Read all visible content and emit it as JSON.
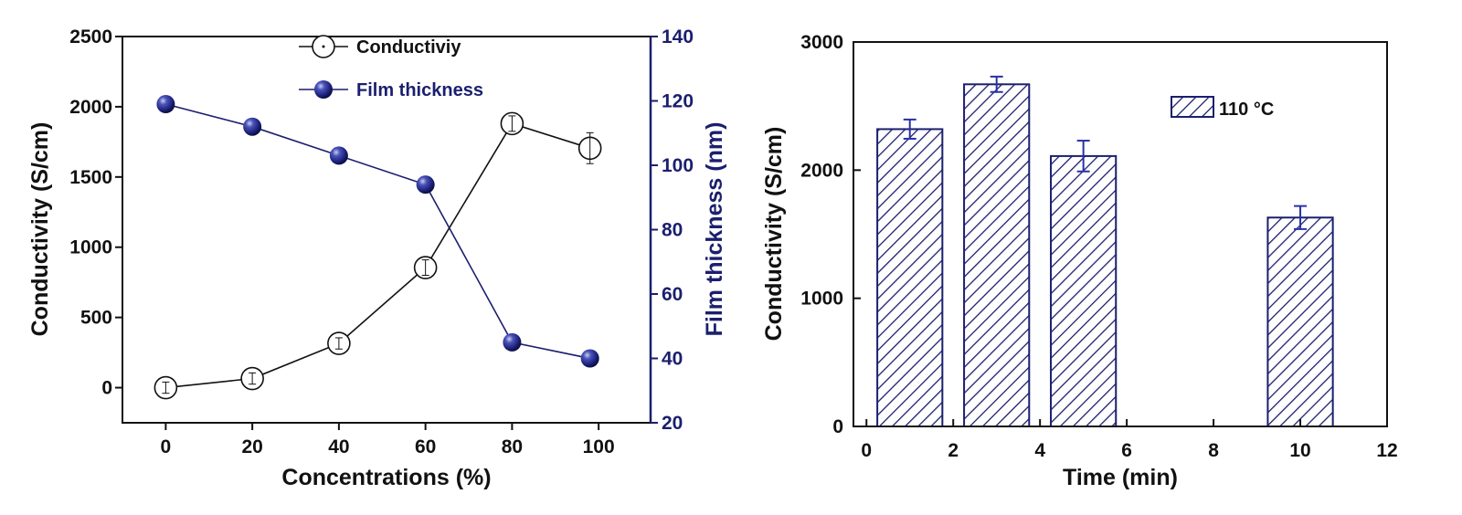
{
  "chart_data": [
    {
      "type": "line",
      "xlabel": "Concentrations (%)",
      "ylabel": "Conductivity (S/cm)",
      "y2label": "Film thickness (nm)",
      "x_ticks": [
        0,
        20,
        40,
        60,
        80,
        100
      ],
      "y_ticks": [
        0,
        500,
        1000,
        1500,
        2000,
        2500
      ],
      "y2_ticks": [
        20,
        40,
        60,
        80,
        100,
        120,
        140
      ],
      "xlim": [
        -10,
        112
      ],
      "ylim": [
        -250,
        2500
      ],
      "y2lim": [
        20,
        140
      ],
      "legend_position": "top-center",
      "series": [
        {
          "name": "Conductiviy",
          "axis": "left",
          "marker": "open-circle",
          "color": "#111111",
          "x": [
            0,
            20,
            40,
            60,
            80,
            98
          ],
          "y": [
            0,
            65,
            315,
            855,
            1880,
            1705
          ],
          "err": [
            40,
            40,
            40,
            55,
            55,
            110
          ]
        },
        {
          "name": "Film thickness",
          "axis": "right",
          "marker": "filled-sphere",
          "color": "#1b1f6e",
          "x": [
            0,
            20,
            40,
            60,
            80,
            98
          ],
          "y": [
            119,
            112,
            103,
            94,
            45,
            40
          ]
        }
      ]
    },
    {
      "type": "bar",
      "xlabel": "Time (min)",
      "ylabel": "Conductivity (S/cm)",
      "x_ticks": [
        0,
        2,
        4,
        6,
        8,
        10,
        12
      ],
      "y_ticks": [
        0,
        1000,
        2000,
        3000
      ],
      "xlim": [
        -0.3,
        12
      ],
      "ylim": [
        0,
        3000
      ],
      "bar_width": 1.5,
      "legend_position": "top-right",
      "series": [
        {
          "name": "110 °C",
          "pattern": "diagonal-hatch",
          "color": "#1b1f6e",
          "x": [
            1,
            3,
            5,
            10
          ],
          "values": [
            2320,
            2670,
            2110,
            1630
          ],
          "err": [
            75,
            60,
            120,
            90
          ]
        }
      ]
    }
  ]
}
